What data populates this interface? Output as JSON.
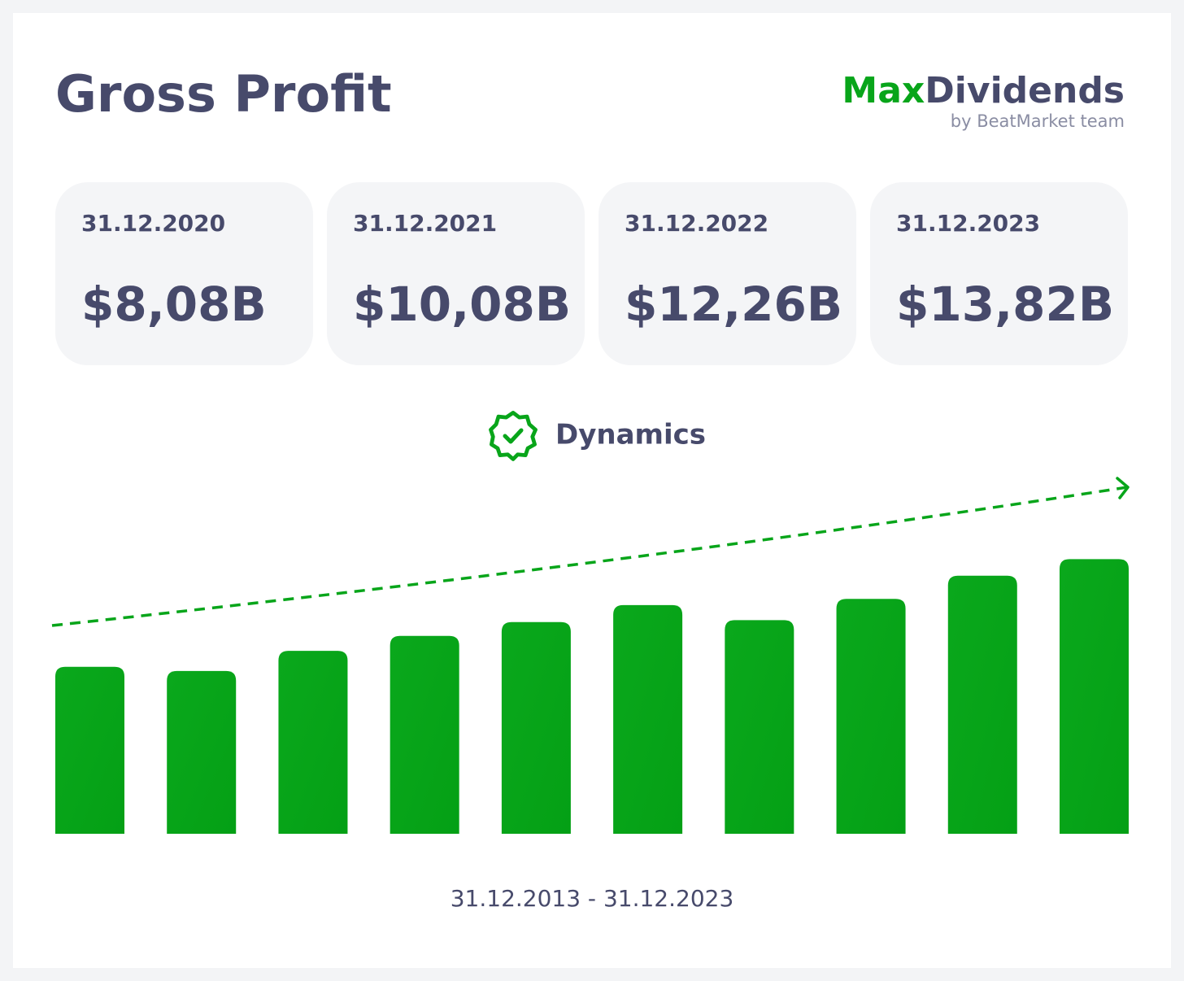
{
  "header": {
    "title": "Gross Profit",
    "brand_a": "Max",
    "brand_b": "Dividends",
    "tagline": "by BeatMarket team"
  },
  "cards": [
    {
      "date": "31.12.2020",
      "value": "$8,08B"
    },
    {
      "date": "31.12.2021",
      "value": "$10,08B"
    },
    {
      "date": "31.12.2022",
      "value": "$12,26B"
    },
    {
      "date": "31.12.2023",
      "value": "$13,82B"
    }
  ],
  "chart_data": {
    "type": "bar",
    "title": "Dynamics",
    "x_label": "31.12.2013 - 31.12.2023",
    "values": [
      3.7,
      3.3,
      5.2,
      6.6,
      7.9,
      9.5,
      8.08,
      10.08,
      12.26,
      13.82
    ],
    "color": "#07a618",
    "ylim": [
      -12,
      20.5
    ]
  }
}
